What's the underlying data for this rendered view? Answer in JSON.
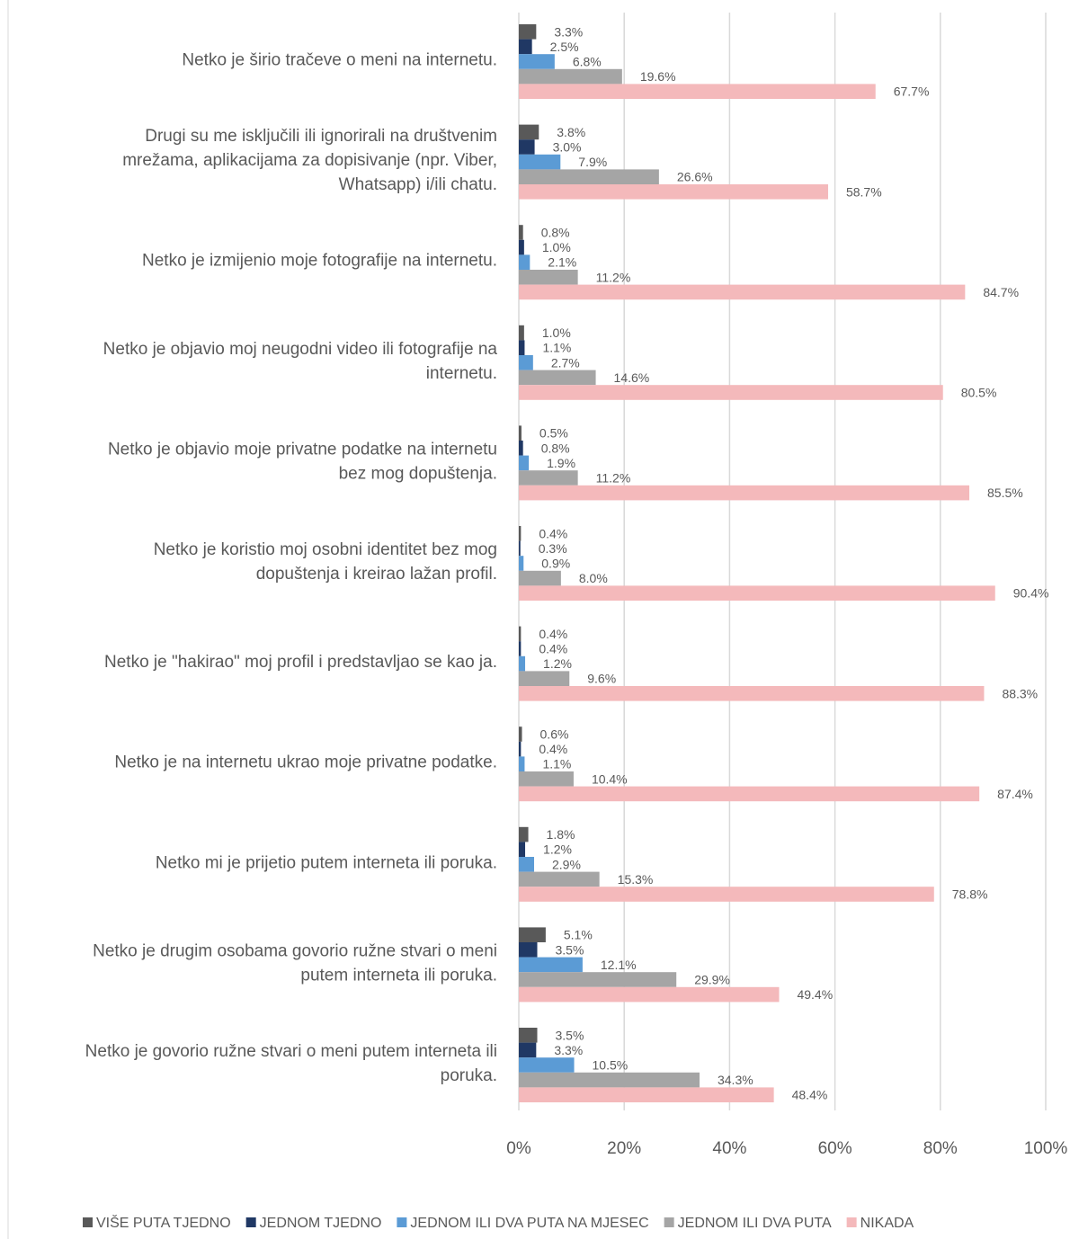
{
  "chart_data": {
    "type": "bar",
    "orientation": "horizontal",
    "categories": [
      "Netko je širio tračeve o meni na internetu.",
      "Drugi su me isključili ili ignorirali na društvenim mrežama, aplikacijama za dopisivanje (npr. Viber, Whatsapp) i/ili chatu.",
      "Netko je izmijenio moje fotografije na internetu.",
      "Netko je objavio moj neugodni video ili fotografije na internetu.",
      "Netko je objavio moje privatne podatke na internetu bez mog dopuštenja.",
      "Netko je koristio moj osobni identitet bez mog dopuštenja i kreirao lažan profil.",
      "Netko je \"hakirao\" moj profil i predstavljao se kao ja.",
      "Netko je na internetu ukrao moje privatne podatke.",
      "Netko mi je prijetio putem interneta ili poruka.",
      "Netko je drugim osobama govorio ružne stvari o meni putem interneta ili poruka.",
      "Netko je govorio ružne stvari o meni putem interneta ili poruka."
    ],
    "category_lines": [
      [
        "Netko je širio tračeve o meni na internetu."
      ],
      [
        "Drugi su me isključili ili ignorirali na društvenim",
        "mrežama, aplikacijama za dopisivanje (npr. Viber,",
        "Whatsapp) i/ili chatu."
      ],
      [
        "Netko je izmijenio moje fotografije na internetu."
      ],
      [
        "Netko je objavio moj neugodni video ili fotografije na",
        "internetu."
      ],
      [
        "Netko je objavio moje privatne podatke na internetu",
        "bez mog dopuštenja."
      ],
      [
        "Netko je koristio moj osobni identitet bez mog",
        "dopuštenja i kreirao lažan profil."
      ],
      [
        "Netko je \"hakirao\" moj profil i predstavljao se kao ja."
      ],
      [
        "Netko je na internetu ukrao moje privatne podatke."
      ],
      [
        "Netko mi je prijetio putem interneta ili poruka."
      ],
      [
        "Netko je drugim osobama govorio ružne stvari o meni",
        "putem interneta ili poruka."
      ],
      [
        "Netko je govorio ružne stvari o meni putem interneta ili",
        "poruka."
      ]
    ],
    "series": [
      {
        "name": "VIŠE PUTA TJEDNO",
        "color": "#595959",
        "values": [
          3.3,
          3.8,
          0.8,
          1.0,
          0.5,
          0.4,
          0.4,
          0.6,
          1.8,
          5.1,
          3.5
        ]
      },
      {
        "name": "JEDNOM TJEDNO",
        "color": "#203864",
        "values": [
          2.5,
          3.0,
          1.0,
          1.1,
          0.8,
          0.3,
          0.4,
          0.4,
          1.2,
          3.5,
          3.3
        ]
      },
      {
        "name": "JEDNOM ILI DVA PUTA NA MJESEC",
        "color": "#5b9bd5",
        "values": [
          6.8,
          7.9,
          2.1,
          2.7,
          1.9,
          0.9,
          1.2,
          1.1,
          2.9,
          12.1,
          10.5
        ]
      },
      {
        "name": "JEDNOM ILI DVA PUTA",
        "color": "#a5a5a5",
        "values": [
          19.6,
          26.6,
          11.2,
          14.6,
          11.2,
          8.0,
          9.6,
          10.4,
          15.3,
          29.9,
          34.3
        ]
      },
      {
        "name": "NIKADA",
        "color": "#f4b9bb",
        "values": [
          67.7,
          58.7,
          84.7,
          80.5,
          85.5,
          90.4,
          88.3,
          87.4,
          78.8,
          49.4,
          48.4
        ]
      }
    ],
    "xlim": [
      0,
      100
    ],
    "xticks": [
      "0%",
      "20%",
      "40%",
      "60%",
      "80%",
      "100%"
    ],
    "value_suffix": "%",
    "grid": true,
    "legend_position": "bottom"
  }
}
